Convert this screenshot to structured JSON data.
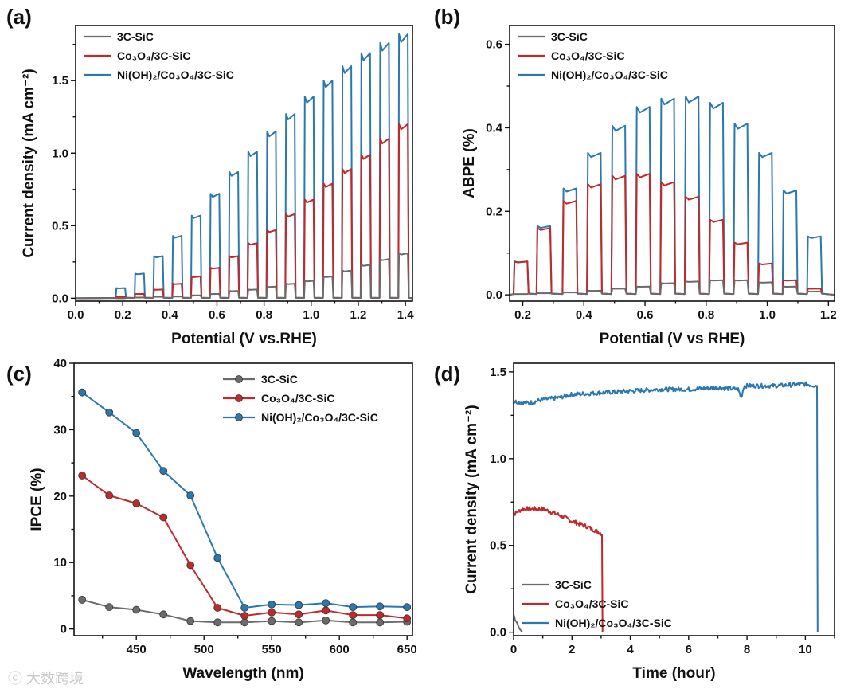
{
  "watermark": "大数跨境",
  "colors": {
    "gray": "#6b6b6b",
    "red": "#c0282a",
    "blue": "#2a78ad"
  },
  "chart_data": [
    {
      "panel": "(a)",
      "type": "line",
      "subtype": "chopped-light",
      "xlabel": "Potential (V vs.RHE)",
      "ylabel": "Current density (mA cm⁻²)",
      "xlim": [
        0.0,
        1.43
      ],
      "ylim": [
        -0.02,
        1.88
      ],
      "xticks": [
        "0.0",
        "0.2",
        "0.4",
        "0.6",
        "0.8",
        "1.0",
        "1.2",
        "1.4"
      ],
      "yticks": [
        "0.0",
        "0.5",
        "1.0",
        "1.5"
      ],
      "legend_position": "top-left",
      "pulse_width": 0.04,
      "pulse_starts": [
        0.17,
        0.25,
        0.33,
        0.41,
        0.49,
        0.57,
        0.65,
        0.73,
        0.81,
        0.89,
        0.97,
        1.05,
        1.13,
        1.21,
        1.29,
        1.37
      ],
      "series": [
        {
          "name": "Ni(OH)₂/Co₃O₄/3C-SiC",
          "color": "blue",
          "peaks": [
            0.07,
            0.17,
            0.29,
            0.43,
            0.57,
            0.72,
            0.87,
            1.01,
            1.15,
            1.27,
            1.39,
            1.5,
            1.6,
            1.69,
            1.76,
            1.82
          ]
        },
        {
          "name": "Co₃O₄/3C-SiC",
          "color": "red",
          "peaks": [
            0.01,
            0.03,
            0.06,
            0.1,
            0.15,
            0.21,
            0.29,
            0.38,
            0.47,
            0.58,
            0.68,
            0.79,
            0.89,
            0.99,
            1.1,
            1.2
          ]
        },
        {
          "name": "3C-SiC",
          "color": "gray",
          "peaks": [
            0.0,
            0.005,
            0.01,
            0.012,
            0.02,
            0.03,
            0.05,
            0.06,
            0.08,
            0.1,
            0.12,
            0.15,
            0.19,
            0.23,
            0.27,
            0.31
          ]
        }
      ]
    },
    {
      "panel": "(b)",
      "type": "line",
      "subtype": "chopped-light",
      "xlabel": "Potential (V vs RHE)",
      "ylabel": "ABPE (%)",
      "xlim": [
        0.157,
        1.22
      ],
      "ylim": [
        -0.015,
        0.645
      ],
      "xticks": [
        "0.2",
        "0.4",
        "0.6",
        "0.8",
        "1.0",
        "1.2"
      ],
      "yticks": [
        "0.0",
        "0.2",
        "0.4",
        "0.6"
      ],
      "legend_position": "top-left",
      "pulse_width": 0.045,
      "pulse_starts": [
        0.17,
        0.245,
        0.33,
        0.41,
        0.49,
        0.57,
        0.65,
        0.73,
        0.81,
        0.89,
        0.97,
        1.05,
        1.13
      ],
      "series": [
        {
          "name": "Ni(OH)₂/Co₃O₄/3C-SiC",
          "color": "blue",
          "peaks": [
            0.08,
            0.165,
            0.255,
            0.34,
            0.405,
            0.45,
            0.47,
            0.475,
            0.46,
            0.41,
            0.34,
            0.25,
            0.14
          ]
        },
        {
          "name": "Co₃O₄/3C-SiC",
          "color": "red",
          "peaks": [
            0.08,
            0.16,
            0.225,
            0.265,
            0.285,
            0.29,
            0.27,
            0.235,
            0.18,
            0.125,
            0.075,
            0.035,
            0.015
          ]
        },
        {
          "name": "3C-SiC",
          "color": "gray",
          "peaks": [
            0.002,
            0.004,
            0.006,
            0.01,
            0.015,
            0.02,
            0.028,
            0.032,
            0.035,
            0.035,
            0.03,
            0.02,
            0.008
          ]
        }
      ]
    },
    {
      "panel": "(c)",
      "type": "line",
      "xlabel": "Wavelength (nm)",
      "ylabel": "IPCE (%)",
      "xlim": [
        404,
        654
      ],
      "ylim": [
        -1,
        40
      ],
      "xticks": [
        "450",
        "500",
        "550",
        "600",
        "650"
      ],
      "yticks": [
        "0",
        "10",
        "20",
        "30",
        "40"
      ],
      "legend_position": "top-right",
      "x": [
        410,
        430,
        450,
        470,
        490,
        510,
        530,
        550,
        570,
        590,
        610,
        630,
        650
      ],
      "series": [
        {
          "name": "3C-SiC",
          "color": "gray",
          "values": [
            4.4,
            3.3,
            2.9,
            2.2,
            1.2,
            1.0,
            1.0,
            1.2,
            1.0,
            1.3,
            1.0,
            1.0,
            1.1
          ]
        },
        {
          "name": "Co₃O₄/3C-SiC",
          "color": "red",
          "values": [
            23.1,
            20.1,
            18.9,
            16.8,
            9.6,
            3.2,
            2.0,
            2.5,
            2.2,
            2.8,
            2.1,
            2.1,
            1.6
          ]
        },
        {
          "name": "Ni(OH)₂/Co₃O₄/3C-SiC",
          "color": "blue",
          "values": [
            35.6,
            32.6,
            29.5,
            23.8,
            20.1,
            10.7,
            3.2,
            3.7,
            3.6,
            3.9,
            3.3,
            3.4,
            3.3
          ]
        }
      ]
    },
    {
      "panel": "(d)",
      "type": "line",
      "xlabel": "Time (hour)",
      "ylabel": "Current density (mA cm⁻²)",
      "xlim": [
        0,
        11.0
      ],
      "ylim": [
        -0.02,
        1.55
      ],
      "xticks": [
        "0",
        "2",
        "4",
        "6",
        "8",
        "10"
      ],
      "yticks": [
        "0.0",
        "0.5",
        "1.0",
        "1.5"
      ],
      "legend_position": "bottom-left",
      "series": [
        {
          "name": "3C-SiC",
          "color": "gray",
          "points": [
            [
              0,
              0.1
            ],
            [
              0.1,
              0.06
            ],
            [
              0.2,
              0.02
            ],
            [
              0.3,
              0.0
            ]
          ]
        },
        {
          "name": "Co₃O₄/3C-SiC",
          "color": "red",
          "points": [
            [
              0,
              0.68
            ],
            [
              0.3,
              0.71
            ],
            [
              1,
              0.71
            ],
            [
              1.5,
              0.68
            ],
            [
              2,
              0.64
            ],
            [
              2.5,
              0.61
            ],
            [
              3.0,
              0.57
            ],
            [
              3.03,
              0.56
            ],
            [
              3.05,
              0.0
            ]
          ]
        },
        {
          "name": "Ni(OH)₂/Co₃O₄/3C-SiC",
          "color": "blue",
          "points": [
            [
              0,
              1.33
            ],
            [
              0.5,
              1.32
            ],
            [
              1,
              1.34
            ],
            [
              1.5,
              1.35
            ],
            [
              2,
              1.37
            ],
            [
              3,
              1.38
            ],
            [
              4,
              1.39
            ],
            [
              5,
              1.4
            ],
            [
              6,
              1.4
            ],
            [
              7,
              1.41
            ],
            [
              7.7,
              1.4
            ],
            [
              7.8,
              1.35
            ],
            [
              7.9,
              1.42
            ],
            [
              9,
              1.42
            ],
            [
              10,
              1.43
            ],
            [
              10.4,
              1.42
            ],
            [
              10.42,
              0.0
            ]
          ]
        }
      ]
    }
  ]
}
